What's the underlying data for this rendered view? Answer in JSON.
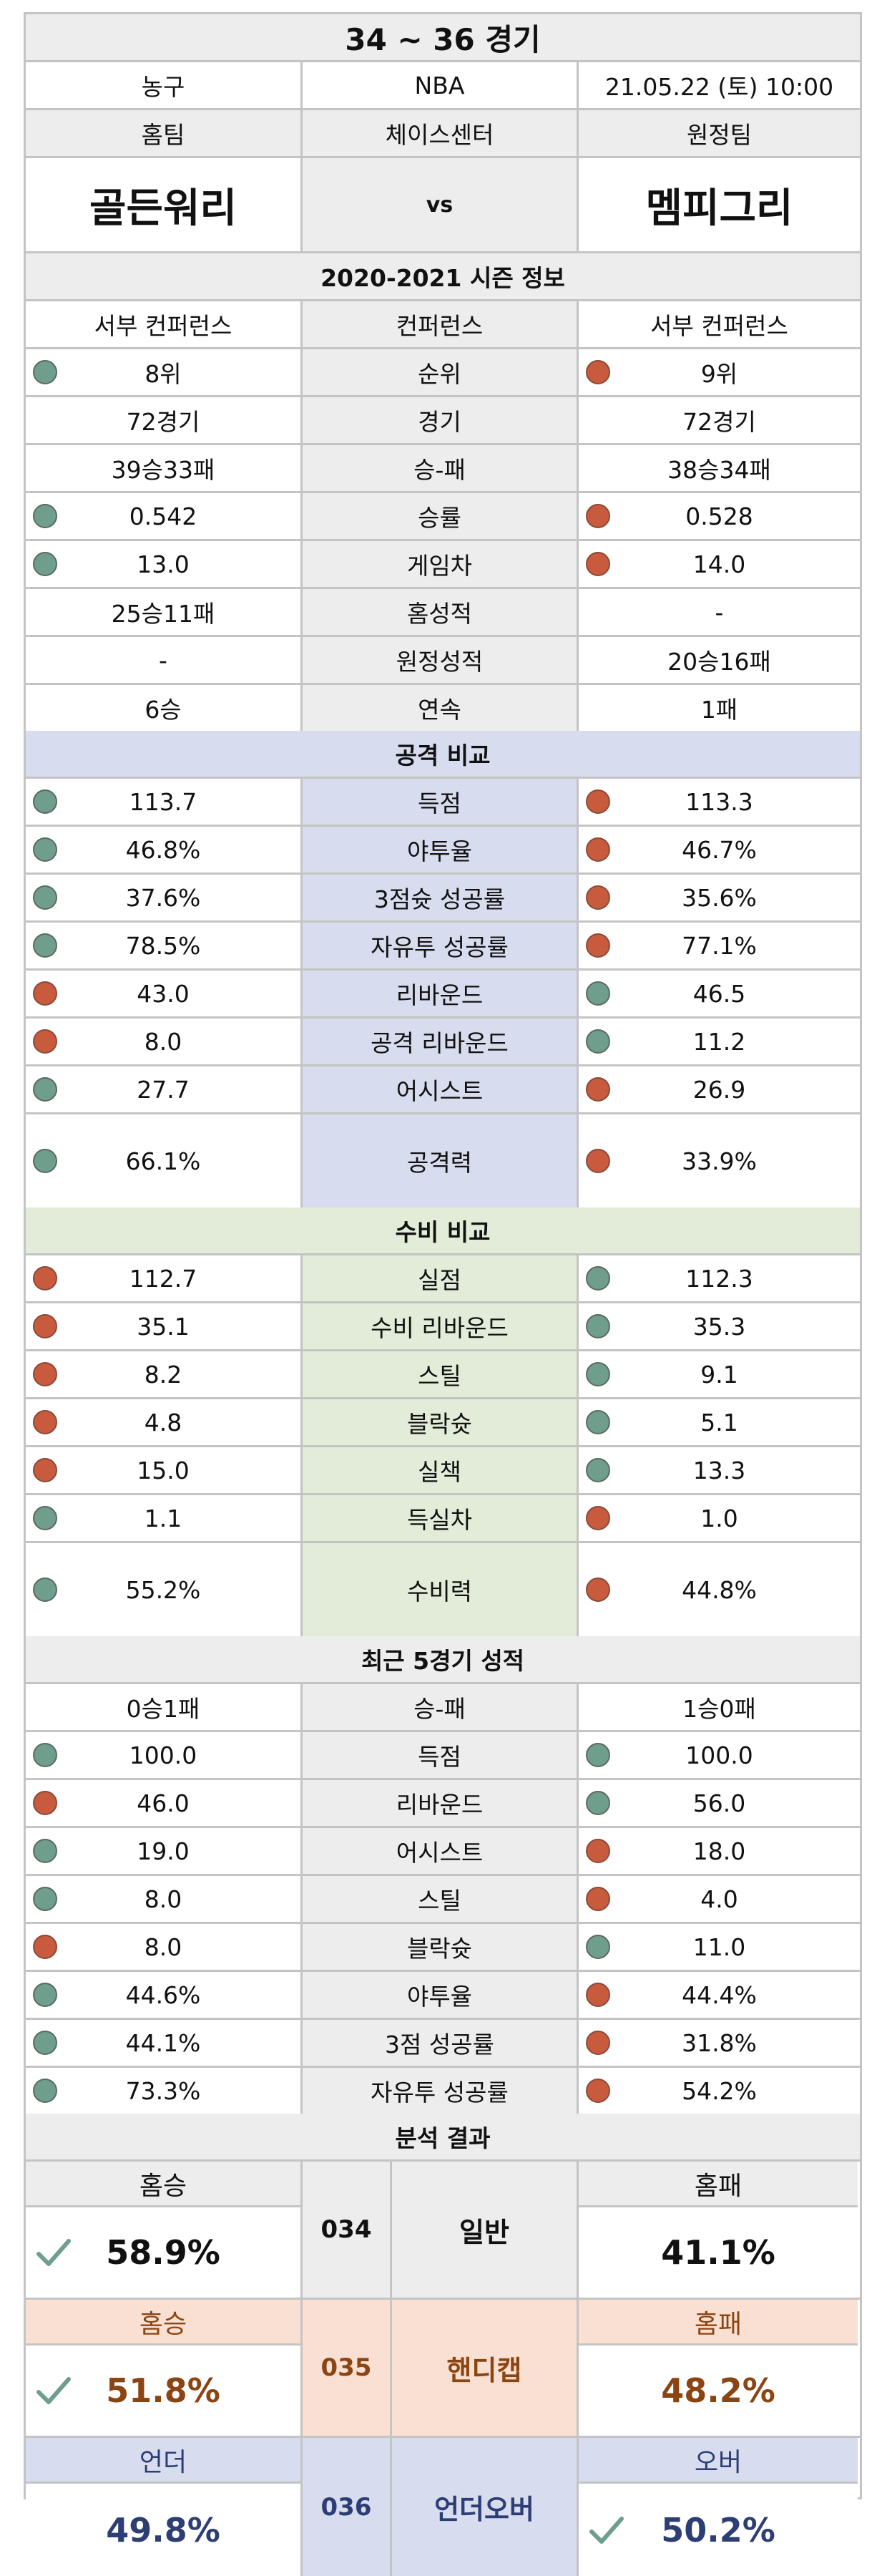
{
  "header": {
    "title": "34 ~ 36 경기",
    "sport": "농구",
    "league": "NBA",
    "datetime": "21.05.22 (토) 10:00",
    "home_label": "홈팀",
    "venue": "체이스센터",
    "away_label": "원정팀",
    "home_team": "골든워리",
    "vs": "vs",
    "away_team": "멤피그리"
  },
  "season": {
    "title": "2020-2021 시즌 정보",
    "rows": [
      {
        "home": "서부 컨퍼런스",
        "label": "컨퍼런스",
        "away": "서부 컨퍼런스",
        "hd": "",
        "ad": ""
      },
      {
        "home": "8위",
        "label": "순위",
        "away": "9위",
        "hd": "g",
        "ad": "r"
      },
      {
        "home": "72경기",
        "label": "경기",
        "away": "72경기",
        "hd": "",
        "ad": ""
      },
      {
        "home": "39승33패",
        "label": "승-패",
        "away": "38승34패",
        "hd": "",
        "ad": ""
      },
      {
        "home": "0.542",
        "label": "승률",
        "away": "0.528",
        "hd": "g",
        "ad": "r"
      },
      {
        "home": "13.0",
        "label": "게임차",
        "away": "14.0",
        "hd": "g",
        "ad": "r"
      },
      {
        "home": "25승11패",
        "label": "홈성적",
        "away": "-",
        "hd": "",
        "ad": ""
      },
      {
        "home": "-",
        "label": "원정성적",
        "away": "20승16패",
        "hd": "",
        "ad": ""
      },
      {
        "home": "6승",
        "label": "연속",
        "away": "1패",
        "hd": "",
        "ad": ""
      }
    ]
  },
  "attack": {
    "title": "공격 비교",
    "rows": [
      {
        "home": "113.7",
        "label": "득점",
        "away": "113.3",
        "hd": "g",
        "ad": "r"
      },
      {
        "home": "46.8%",
        "label": "야투율",
        "away": "46.7%",
        "hd": "g",
        "ad": "r"
      },
      {
        "home": "37.6%",
        "label": "3점슛 성공률",
        "away": "35.6%",
        "hd": "g",
        "ad": "r"
      },
      {
        "home": "78.5%",
        "label": "자유투 성공률",
        "away": "77.1%",
        "hd": "g",
        "ad": "r"
      },
      {
        "home": "43.0",
        "label": "리바운드",
        "away": "46.5",
        "hd": "r",
        "ad": "g"
      },
      {
        "home": "8.0",
        "label": "공격 리바운드",
        "away": "11.2",
        "hd": "r",
        "ad": "g"
      },
      {
        "home": "27.7",
        "label": "어시스트",
        "away": "26.9",
        "hd": "g",
        "ad": "r"
      }
    ],
    "total": {
      "home": "66.1%",
      "label": "공격력",
      "away": "33.9%",
      "hd": "g",
      "ad": "r"
    }
  },
  "defense": {
    "title": "수비 비교",
    "rows": [
      {
        "home": "112.7",
        "label": "실점",
        "away": "112.3",
        "hd": "r",
        "ad": "g"
      },
      {
        "home": "35.1",
        "label": "수비 리바운드",
        "away": "35.3",
        "hd": "r",
        "ad": "g"
      },
      {
        "home": "8.2",
        "label": "스틸",
        "away": "9.1",
        "hd": "r",
        "ad": "g"
      },
      {
        "home": "4.8",
        "label": "블락슛",
        "away": "5.1",
        "hd": "r",
        "ad": "g"
      },
      {
        "home": "15.0",
        "label": "실책",
        "away": "13.3",
        "hd": "r",
        "ad": "g"
      },
      {
        "home": "1.1",
        "label": "득실차",
        "away": "1.0",
        "hd": "g",
        "ad": "r"
      }
    ],
    "total": {
      "home": "55.2%",
      "label": "수비력",
      "away": "44.8%",
      "hd": "g",
      "ad": "r"
    }
  },
  "recent": {
    "title": "최근 5경기 성적",
    "rows": [
      {
        "home": "0승1패",
        "label": "승-패",
        "away": "1승0패",
        "hd": "",
        "ad": ""
      },
      {
        "home": "100.0",
        "label": "득점",
        "away": "100.0",
        "hd": "g",
        "ad": "g"
      },
      {
        "home": "46.0",
        "label": "리바운드",
        "away": "56.0",
        "hd": "r",
        "ad": "g"
      },
      {
        "home": "19.0",
        "label": "어시스트",
        "away": "18.0",
        "hd": "g",
        "ad": "r"
      },
      {
        "home": "8.0",
        "label": "스틸",
        "away": "4.0",
        "hd": "g",
        "ad": "r"
      },
      {
        "home": "8.0",
        "label": "블락슛",
        "away": "11.0",
        "hd": "r",
        "ad": "g"
      },
      {
        "home": "44.6%",
        "label": "야투율",
        "away": "44.4%",
        "hd": "g",
        "ad": "r"
      },
      {
        "home": "44.1%",
        "label": "3점 성공률",
        "away": "31.8%",
        "hd": "g",
        "ad": "r"
      },
      {
        "home": "73.3%",
        "label": "자유투 성공률",
        "away": "54.2%",
        "hd": "g",
        "ad": "r"
      }
    ]
  },
  "analysis": {
    "title": "분석 결과",
    "blocks": [
      {
        "code": "034",
        "type": "일반",
        "left_label": "홈승",
        "left_value": "58.9%",
        "right_label": "홈패",
        "right_value": "41.1%",
        "pick": "left"
      },
      {
        "code": "035",
        "type": "핸디캡",
        "left_label": "홈승",
        "left_value": "51.8%",
        "right_label": "홈패",
        "right_value": "48.2%",
        "pick": "left"
      },
      {
        "code": "036",
        "type": "언더오버",
        "left_label": "언더",
        "left_value": "49.8%",
        "right_label": "오버",
        "right_value": "50.2%",
        "pick": "right"
      }
    ]
  },
  "colors": {
    "green_dot": "#6f9e8d",
    "red_dot": "#c85b3d",
    "attack_bg": "#d7dcee",
    "defense_bg": "#e3ecd8",
    "handicap_bg": "#f9e0d3",
    "check": "#6f9e8d"
  }
}
